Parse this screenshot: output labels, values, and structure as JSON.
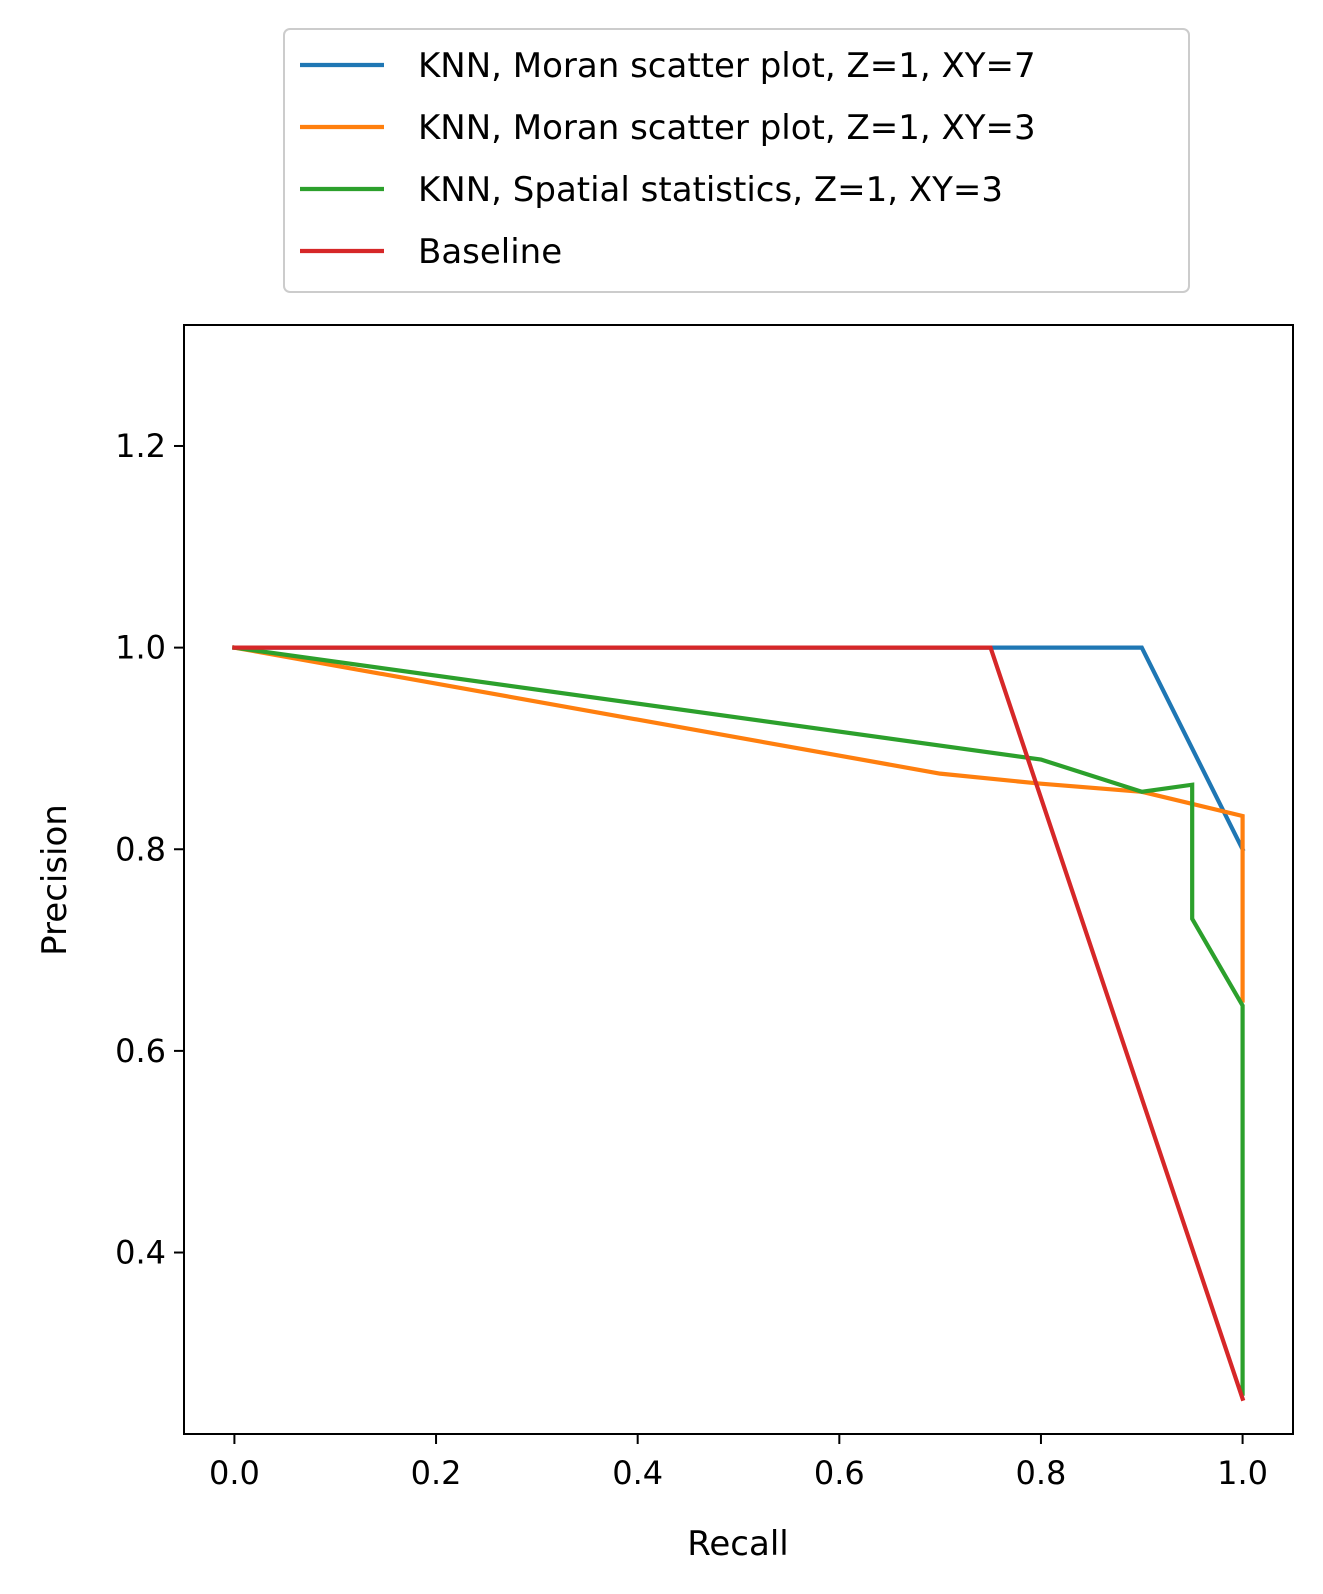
{
  "chart_data": {
    "type": "line",
    "xlabel": "Recall",
    "ylabel": "Precision",
    "xlim": [
      -0.05,
      1.05
    ],
    "ylim": [
      0.22,
      1.32
    ],
    "xticks": [
      0.0,
      0.2,
      0.4,
      0.6,
      0.8,
      1.0
    ],
    "xtick_labels": [
      "0.0",
      "0.2",
      "0.4",
      "0.6",
      "0.8",
      "1.0"
    ],
    "yticks": [
      0.4,
      0.6,
      0.8,
      1.0,
      1.2
    ],
    "ytick_labels": [
      "0.4",
      "0.6",
      "0.8",
      "1.0",
      "1.2"
    ],
    "grid": false,
    "legend_placement": "above plot, centered",
    "series": [
      {
        "name": "KNN, Moran scatter plot, Z=1, XY=7",
        "color": "#1f77b4",
        "x": [
          0.0,
          0.9,
          1.0
        ],
        "y": [
          1.0,
          1.0,
          0.8
        ]
      },
      {
        "name": "KNN, Moran scatter plot, Z=1, XY=3",
        "color": "#ff7f0e",
        "x": [
          0.0,
          0.7,
          0.8,
          0.9,
          1.0,
          1.0
        ],
        "y": [
          1.0,
          0.875,
          0.865,
          0.857,
          0.833,
          0.65
        ]
      },
      {
        "name": "KNN, Spatial statistics, Z=1, XY=3",
        "color": "#2ca02c",
        "x": [
          0.0,
          0.8,
          0.9,
          0.95,
          0.95,
          1.0,
          1.0
        ],
        "y": [
          1.0,
          0.889,
          0.857,
          0.864,
          0.731,
          0.645,
          0.26
        ]
      },
      {
        "name": "Baseline",
        "color": "#d62728",
        "x": [
          0.0,
          0.75,
          1.0
        ],
        "y": [
          1.0,
          1.0,
          0.255
        ]
      }
    ]
  }
}
